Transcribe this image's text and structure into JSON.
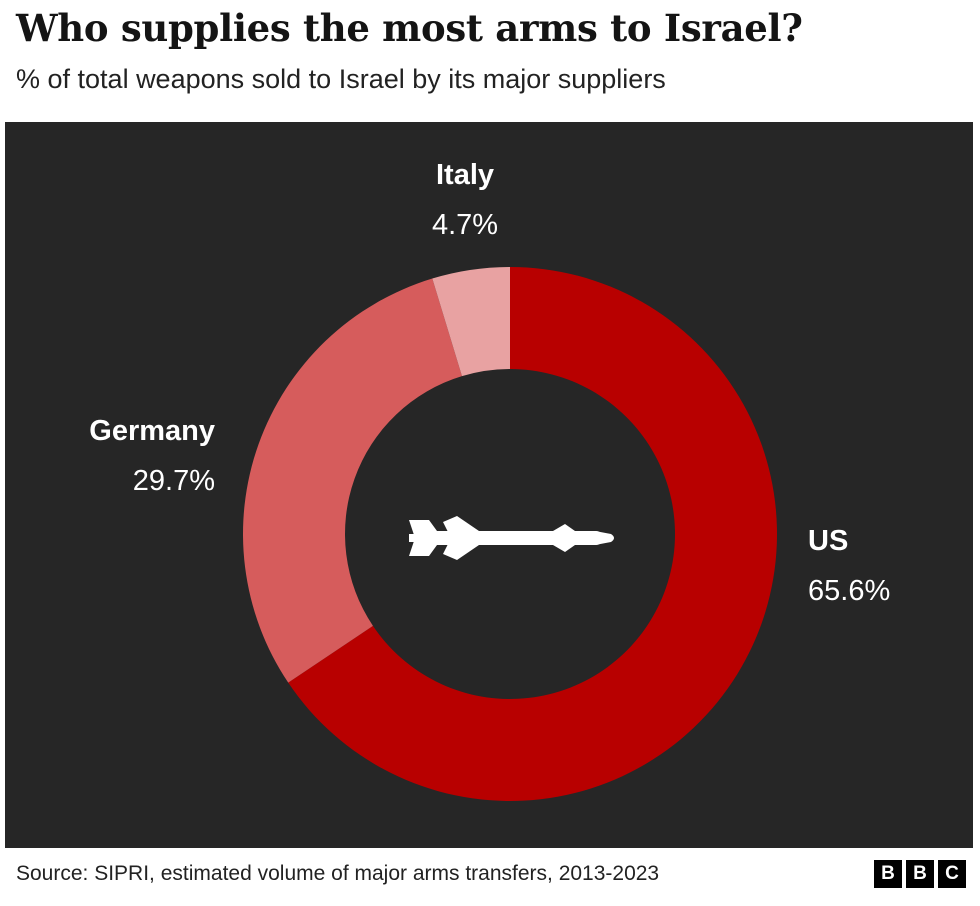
{
  "header": {
    "title": "Who supplies the most arms to Israel?",
    "subtitle": "% of total weapons sold to Israel by its major suppliers"
  },
  "chart_data": {
    "type": "pie",
    "variant": "donut",
    "title": "Who supplies the most arms to Israel?",
    "subtitle": "% of total weapons sold to Israel by its major suppliers",
    "unit": "%",
    "slices": [
      {
        "label": "US",
        "value": 65.6,
        "display": "65.6%",
        "color": "#b80000"
      },
      {
        "label": "Germany",
        "value": 29.7,
        "display": "29.7%",
        "color": "#d65c5c"
      },
      {
        "label": "Italy",
        "value": 4.7,
        "display": "4.7%",
        "color": "#e8a2a2"
      }
    ],
    "center_icon": "missile-icon",
    "background_color": "#262626",
    "legend": "none"
  },
  "footer": {
    "source": "Source: SIPRI, estimated volume of major arms transfers, 2013-2023",
    "logo_letters": [
      "B",
      "B",
      "C"
    ]
  }
}
